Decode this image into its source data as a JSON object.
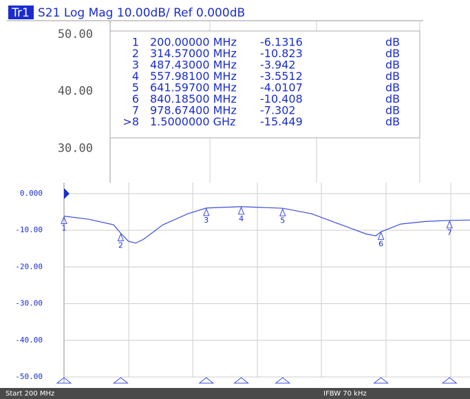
{
  "header": {
    "trace": "Tr1",
    "text": "S21 Log Mag 10.00dB/ Ref 0.000dB"
  },
  "top_panel": {
    "ylim": [
      24,
      52.4
    ],
    "yticks": [
      {
        "value": 50,
        "label": "50.00"
      },
      {
        "value": 40,
        "label": "40.00"
      },
      {
        "value": 30,
        "label": "30.00"
      }
    ]
  },
  "markers": [
    {
      "label": "1",
      "frequency": {
        "value": 200,
        "label": "200.00000 MHz"
      },
      "value": -6.1316,
      "unit": "dB"
    },
    {
      "label": "2",
      "frequency": {
        "value": 314.57,
        "label": "314.57000 MHz"
      },
      "value": -10.823,
      "unit": "dB"
    },
    {
      "label": "3",
      "frequency": {
        "value": 487.43,
        "label": "487.43000 MHz"
      },
      "value": -3.942,
      "unit": "dB"
    },
    {
      "label": "4",
      "frequency": {
        "value": 557.981,
        "label": "557.98100 MHz"
      },
      "value": -3.5512,
      "unit": "dB"
    },
    {
      "label": "5",
      "frequency": {
        "value": 641.597,
        "label": "641.59700 MHz"
      },
      "value": -4.0107,
      "unit": "dB"
    },
    {
      "label": "6",
      "frequency": {
        "value": 840.185,
        "label": "840.18500 MHz"
      },
      "value": -10.408,
      "unit": "dB"
    },
    {
      "label": "7",
      "frequency": {
        "value": 978.674,
        "label": "978.67400 MHz"
      },
      "value": -7.302,
      "unit": "dB"
    },
    {
      "label": ">8",
      "frequency": {
        "value": 1500,
        "label": "1.5000000 GHz"
      },
      "value": -15.449,
      "unit": "dB"
    }
  ],
  "marker_numbers": [
    "1",
    "2",
    "3",
    "4",
    "5",
    "6",
    "7"
  ],
  "chart_data": {
    "type": "line",
    "x": [
      200,
      250,
      300,
      314.57,
      330,
      345,
      360,
      400,
      450,
      487.43,
      557.98,
      641.6,
      700,
      760,
      810,
      830,
      840.185,
      880,
      930,
      978.674,
      1020
    ],
    "series": [
      {
        "name": "S21",
        "color": "#3a4bdc",
        "values": [
          -6.13,
          -7.0,
          -8.5,
          -10.8,
          -13.0,
          -13.5,
          -12.5,
          -8.5,
          -5.5,
          -3.94,
          -3.55,
          -4.0,
          -5.5,
          -8.5,
          -11.0,
          -11.5,
          -10.41,
          -8.3,
          -7.6,
          -7.3,
          -7.2
        ]
      }
    ],
    "xlim": [
      200,
      1020
    ],
    "ylim": [
      -50,
      3
    ],
    "yticks": [
      {
        "value": 0,
        "label": "0.000"
      },
      {
        "value": -10,
        "label": "-10.00"
      },
      {
        "value": -20,
        "label": "-20.00"
      },
      {
        "value": -30,
        "label": "-30.00"
      },
      {
        "value": -40,
        "label": "-40.00"
      },
      {
        "value": -50,
        "label": "-50.00"
      }
    ],
    "grid": true
  },
  "footer": {
    "start": "Start 200 MHz",
    "ifbw": "IFBW 70 kHz"
  }
}
